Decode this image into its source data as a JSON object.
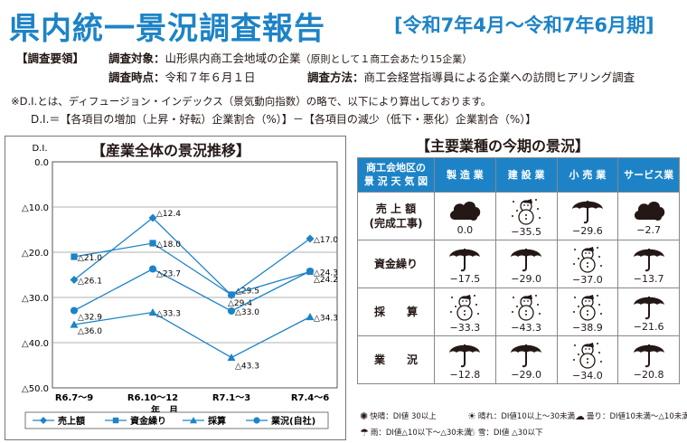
{
  "header": {
    "title": "県内統一景況調査報告",
    "period": "[令和7年4月～令和7年6月期]"
  },
  "summary": {
    "heading": "【調査要領】",
    "target_label": "調査対象：",
    "target_value": "山形県内商工会地域の企業",
    "target_note": "（原則として１商工会あたり15企業）",
    "time_label": "調査時点：",
    "time_value": "令和７年６月１日",
    "method_label": "調査方法：",
    "method_value": "商工会経営指導員による企業への訪問ヒアリング調査"
  },
  "note": {
    "line1": "※D.I.とは、ディフュージョン・インデックス（景気動向指数）の略で、以下により算出しております。",
    "line2": "D.I.＝【各項目の増加（上昇・好転）企業割合（%）】－【各項目の減少（低下・悪化）企業割合（%）】"
  },
  "chart_data": {
    "type": "line",
    "title": "【産業全体の景況推移】",
    "ylabel": "D.I.",
    "xlabel": "年　月",
    "categories": [
      "R6.7～9",
      "R6.10～12",
      "R7.1～3",
      "R7.4～6"
    ],
    "ylim": [
      -50,
      0
    ],
    "y_ticks": [
      "0.0",
      "△10.0",
      "△20.0",
      "△30.0",
      "△40.0",
      "△50.0"
    ],
    "grid": true,
    "legend_position": "bottom",
    "series": [
      {
        "name": "売上額",
        "marker": "diamond",
        "values": [
          -26.1,
          -12.4,
          -29.5,
          -17.0
        ],
        "labels": [
          "△26.1",
          "△12.4",
          "△29.5",
          "△17.0"
        ]
      },
      {
        "name": "資金繰り",
        "marker": "square",
        "values": [
          -21.0,
          -18.0,
          -29.4,
          -24.3
        ],
        "labels": [
          "△21.0",
          "△18.0",
          "△29.4",
          "△24.3"
        ]
      },
      {
        "name": "採算",
        "marker": "triangle",
        "values": [
          -36.0,
          -33.3,
          -43.3,
          -34.3
        ],
        "labels": [
          "△36.0",
          "△33.3",
          "△43.3",
          "△34.3"
        ]
      },
      {
        "name": "業況(自社)",
        "marker": "circle",
        "values": [
          -32.9,
          -23.7,
          -33.0,
          -24.2
        ],
        "labels": [
          "△32.9",
          "△23.7",
          "△33.0",
          "△24.2"
        ]
      }
    ],
    "colors": {
      "line": "#1d83c6",
      "grid": "#999999"
    }
  },
  "table": {
    "title": "【主要業種の今期の景況】",
    "corner_line1": "商工会地区の",
    "corner_line2": "景 況 天 気 図",
    "columns": [
      "製 造 業",
      "建 設 業",
      "小 売 業",
      "サービス業"
    ],
    "rows": [
      {
        "label_line1": "売 上 額",
        "label_line2": "(完成工事)",
        "cells": [
          {
            "icon": "cloud-icon",
            "value": "0.0"
          },
          {
            "icon": "snowman-icon",
            "value": "−35.5"
          },
          {
            "icon": "umbrella-icon",
            "value": "−29.6"
          },
          {
            "icon": "cloud-icon",
            "value": "−2.7"
          }
        ]
      },
      {
        "label_line1": "資金繰り",
        "label_line2": "",
        "cells": [
          {
            "icon": "umbrella-icon",
            "value": "−17.5"
          },
          {
            "icon": "umbrella-icon",
            "value": "−29.0"
          },
          {
            "icon": "snowman-icon",
            "value": "−37.0"
          },
          {
            "icon": "umbrella-icon",
            "value": "−13.7"
          }
        ]
      },
      {
        "label_line1": "採　　算",
        "label_line2": "",
        "cells": [
          {
            "icon": "snowman-icon",
            "value": "−33.3"
          },
          {
            "icon": "snowman-icon",
            "value": "−43.3"
          },
          {
            "icon": "snowman-icon",
            "value": "−38.9"
          },
          {
            "icon": "umbrella-icon",
            "value": "−21.6"
          }
        ]
      },
      {
        "label_line1": "業　　況",
        "label_line2": "",
        "cells": [
          {
            "icon": "umbrella-icon",
            "value": "−12.8"
          },
          {
            "icon": "umbrella-icon",
            "value": "−29.0"
          },
          {
            "icon": "snowman-icon",
            "value": "−34.0"
          },
          {
            "icon": "umbrella-icon",
            "value": "−20.8"
          }
        ]
      }
    ]
  },
  "weather_legend": {
    "sunny": "快晴：DI値 30以上",
    "fine": "晴れ：DI値10以上～30未満",
    "cloudy": "曇り：DI値10未満～△10未満",
    "rain": "雨：DI値△10以下～△30未満",
    "snow": "雪：DI値 △30以下"
  }
}
